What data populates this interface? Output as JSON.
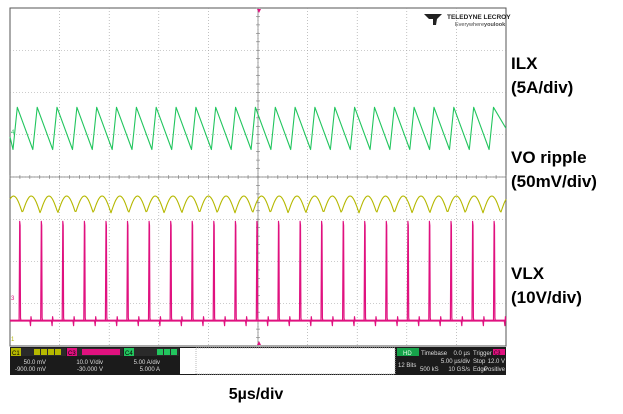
{
  "chart_data": {
    "type": "line",
    "title": "",
    "xlabel": "5µs/div",
    "ylabel": "",
    "grid": true,
    "grid_divisions": {
      "x": 10,
      "y": 8
    },
    "time_per_div_us": 5,
    "legend": "right side labels",
    "series": [
      {
        "name": "ILX",
        "scale": "(5A/div)",
        "color": "#22c55e",
        "waveform": "sawtooth",
        "cycles": 25,
        "center_div": 2.85,
        "amplitude_div": 0.5
      },
      {
        "name": "VO ripple",
        "scale": "(50mV/div)",
        "color": "#b5b800",
        "waveform": "scallop",
        "cycles": 28,
        "center_div": 4.65,
        "amplitude_div": 0.2
      },
      {
        "name": "VLX",
        "scale": "(10V/div)",
        "color": "#e0117f",
        "waveform": "spikes",
        "cycles": 23,
        "baseline_div": 7.4,
        "peak_div": 5.05
      }
    ]
  },
  "brand": {
    "name": "TELEDYNE LECROY",
    "tagline_prefix": "Everywhere",
    "tagline_suffix": "youlook"
  },
  "labels": {
    "ilx_name": "ILX",
    "ilx_scale": "(5A/div)",
    "vo_name": "VO ripple",
    "vo_scale": "(50mV/div)",
    "vlx_name": "VLX",
    "vlx_scale": "(10V/div)",
    "time_div": "5µs/div"
  },
  "channels": [
    {
      "id": "C1",
      "scale": "50.0 mV",
      "offset": "-900.00 mV",
      "color": "#b5b800"
    },
    {
      "id": "C3",
      "scale": "10.0 V/div",
      "offset": "-30.000 V",
      "color": "#e0117f"
    },
    {
      "id": "C4",
      "scale": "5.00 A/div",
      "offset": "5.000 A",
      "color": "#22c55e"
    }
  ],
  "acq": {
    "hd": "HD",
    "bits": "12 Bits",
    "timebase_label": "Timebase",
    "timebase_delay": "0.0 µs",
    "timebase_div": "5.00 µs/div",
    "samples": "500 kS",
    "rate": "10 GS/s",
    "trigger_label": "Trigger",
    "trigger_ch": "C3",
    "trigger_mode": "Stop",
    "trigger_level": "12.0 V",
    "trigger_type": "Edge",
    "trigger_slope": "Positive"
  },
  "colors": {
    "ch1": "#b5b800",
    "ch3": "#e0117f",
    "ch4": "#22c55e",
    "bg": "#ffffff",
    "grid": "#9a9a9a"
  }
}
